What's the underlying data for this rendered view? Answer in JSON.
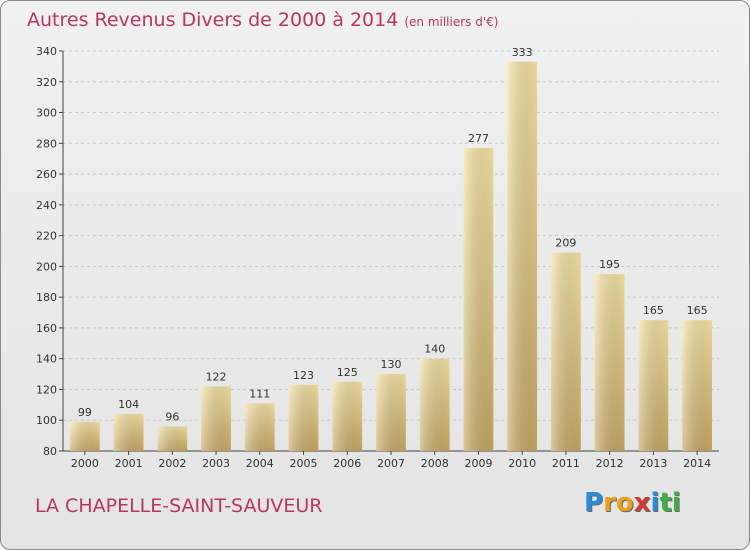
{
  "header": {
    "title": "Autres Revenus Divers de 2000 à 2014",
    "unit": "(en milliers d'€)"
  },
  "footer": {
    "commune": "LA CHAPELLE-SAINT-SAUVEUR",
    "logo_letters": [
      "P",
      "r",
      "o",
      "x",
      "i",
      "t",
      "i"
    ],
    "logo_colors": [
      "#2a8bd6",
      "#e8a020",
      "#e8a020",
      "#d43a2a",
      "#2a8bd6",
      "#3fae49",
      "#3fae49"
    ]
  },
  "chart_data": {
    "type": "bar",
    "title": "Autres Revenus Divers de 2000 à 2014",
    "xlabel": "",
    "ylabel": "",
    "categories": [
      "2000",
      "2001",
      "2002",
      "2003",
      "2004",
      "2005",
      "2006",
      "2007",
      "2008",
      "2009",
      "2010",
      "2011",
      "2012",
      "2013",
      "2014"
    ],
    "values": [
      99,
      104,
      96,
      122,
      111,
      123,
      125,
      130,
      140,
      277,
      333,
      209,
      195,
      165,
      165
    ],
    "ylim": [
      80,
      340
    ],
    "yticks": [
      80,
      100,
      120,
      140,
      160,
      180,
      200,
      220,
      240,
      260,
      280,
      300,
      320,
      340
    ],
    "grid": true,
    "bar_color_light": "#f6e4a6",
    "bar_color_dark": "#c8a963"
  }
}
